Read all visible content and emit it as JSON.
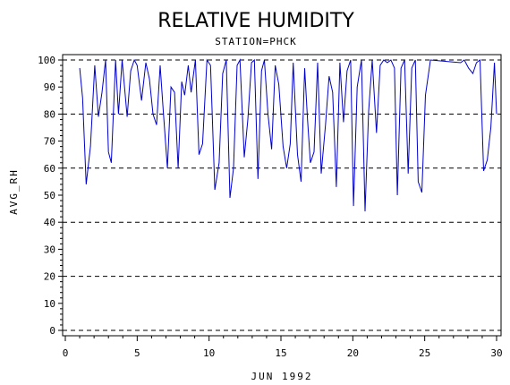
{
  "chart_data": {
    "type": "line",
    "title": "RELATIVE HUMIDITY",
    "subtitle": "STATION=PHCK",
    "xlabel": "JUN 1992",
    "ylabel": "AVG_RH",
    "xlim": [
      0,
      30
    ],
    "ylim": [
      0,
      100
    ],
    "x_ticks": [
      0,
      5,
      10,
      15,
      20,
      25,
      30
    ],
    "y_ticks": [
      0,
      10,
      20,
      30,
      40,
      50,
      60,
      70,
      80,
      90,
      100
    ],
    "reference_lines": [
      0,
      20,
      40,
      60,
      80,
      100
    ],
    "line_color": "#0000cc",
    "grid": false,
    "series": [
      {
        "x": [
          1.0,
          1.2,
          1.45,
          1.75,
          2.05,
          2.3,
          2.55,
          2.8,
          3.0,
          3.2,
          3.5,
          3.7,
          3.95,
          4.3,
          4.55,
          4.8,
          5.0,
          5.3,
          5.6,
          5.85,
          6.1,
          6.35,
          6.6,
          6.8,
          7.1,
          7.35,
          7.6,
          7.85,
          8.1,
          8.3,
          8.55,
          8.75,
          9.05,
          9.3,
          9.55,
          9.85,
          10.1,
          10.4,
          10.7,
          10.95,
          11.2,
          11.45,
          11.7,
          11.95,
          12.15,
          12.45,
          12.7,
          12.95,
          13.15,
          13.4,
          13.65,
          13.85,
          14.1,
          14.35,
          14.6,
          14.85,
          15.15,
          15.4,
          15.65,
          15.85,
          16.15,
          16.4,
          16.65,
          16.85,
          17.05,
          17.3,
          17.55,
          17.8,
          18.1,
          18.35,
          18.6,
          18.85,
          19.1,
          19.35,
          19.6,
          19.85,
          20.05,
          20.3,
          20.6,
          20.85,
          21.1,
          21.35,
          21.65,
          21.9,
          22.15,
          22.4,
          22.65,
          22.9,
          23.1,
          23.35,
          23.6,
          23.85,
          24.1,
          24.35,
          24.55,
          24.8,
          25.05,
          25.4,
          27.5,
          27.75,
          28.05,
          28.35,
          28.6,
          28.85,
          29.1,
          29.35,
          29.6,
          29.85,
          30.0
        ],
        "values": [
          97,
          86,
          54,
          68,
          98,
          79,
          88,
          100,
          66,
          62,
          100,
          80,
          100,
          79,
          96,
          100,
          98,
          85,
          99,
          93,
          80,
          76,
          98,
          82,
          60,
          90,
          88,
          60,
          92,
          87,
          98,
          88,
          100,
          65,
          69,
          100,
          98,
          52,
          62,
          95,
          100,
          49,
          60,
          98,
          100,
          64,
          78,
          99,
          100,
          56,
          96,
          100,
          80,
          67,
          98,
          91,
          68,
          60,
          69,
          99,
          65,
          55,
          97,
          78,
          62,
          66,
          99,
          58,
          76,
          94,
          88,
          53,
          99,
          77,
          96,
          100,
          46,
          90,
          100,
          44,
          81,
          100,
          73,
          98,
          100,
          99,
          100,
          97,
          50,
          97,
          100,
          58,
          97,
          100,
          55,
          51,
          87,
          100,
          99,
          100,
          97,
          95,
          99,
          100,
          59,
          63,
          75,
          99,
          80
        ]
      }
    ]
  }
}
